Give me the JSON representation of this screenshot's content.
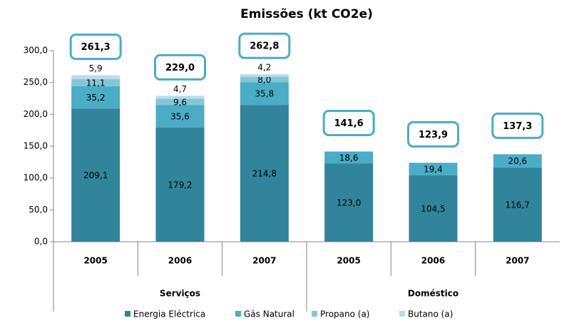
{
  "chart_data": {
    "type": "stacked_bar",
    "title": "Emissões (kt CO2e)",
    "categories": [
      "2005",
      "2006",
      "2007",
      "2005",
      "2006",
      "2007"
    ],
    "groups": [
      "Serviços",
      "Doméstico"
    ],
    "series": [
      {
        "name": "Energia Eléctrica",
        "color": "#31849b",
        "values": [
          209.1,
          179.2,
          214.8,
          123.0,
          104.5,
          116.7
        ],
        "value_labels": [
          "209,1",
          "179,2",
          "214,8",
          "123,0",
          "104,5",
          "116,7"
        ]
      },
      {
        "name": "Gás Natural",
        "color": "#4bacc6",
        "values": [
          35.2,
          35.6,
          35.8,
          18.6,
          19.4,
          20.6
        ],
        "value_labels": [
          "35,2",
          "35,6",
          "35,8",
          "18,6",
          "19,4",
          "20,6"
        ]
      },
      {
        "name": "Propano (a)",
        "color": "#84c6d9",
        "values": [
          11.1,
          9.6,
          8.0,
          null,
          null,
          null
        ],
        "value_labels": [
          "11,1",
          "9,6",
          "8,0",
          null,
          null,
          null
        ]
      },
      {
        "name": "Butano (a)",
        "color": "#b7dde8",
        "values": [
          5.9,
          4.7,
          4.2,
          null,
          null,
          null
        ],
        "value_labels": [
          "5,9",
          "4,7",
          "4,2",
          null,
          null,
          null
        ]
      }
    ],
    "totals": [
      261.3,
      229.0,
      262.8,
      141.6,
      123.9,
      137.3
    ],
    "total_labels": [
      "261,3",
      "229,0",
      "262,8",
      "141,6",
      "123,9",
      "137,3"
    ],
    "ylim": [
      0,
      300
    ],
    "yticks": [
      {
        "value": 0,
        "label": "0,0"
      },
      {
        "value": 50,
        "label": "50,0"
      },
      {
        "value": 100,
        "label": "100,0"
      },
      {
        "value": 150,
        "label": "150,0"
      },
      {
        "value": 200,
        "label": "200,0"
      },
      {
        "value": 250,
        "label": "250,0"
      },
      {
        "value": 300,
        "label": "300,0"
      }
    ],
    "legend": "bottom"
  }
}
